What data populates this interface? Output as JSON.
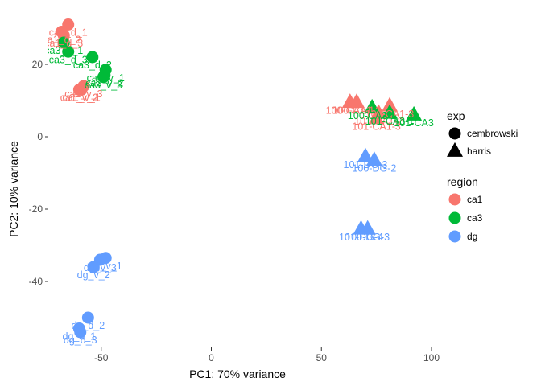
{
  "chart_data": {
    "type": "scatter",
    "title": "",
    "xlabel": "PC1: 70% variance",
    "ylabel": "PC2: 10% variance",
    "xlim": [
      -75,
      102
    ],
    "ylim": [
      -58,
      34
    ],
    "x_ticks": [
      -50,
      0,
      50,
      100
    ],
    "y_ticks": [
      20,
      0,
      -20,
      -40
    ],
    "grid": false,
    "legend": {
      "placement": "right",
      "exp": {
        "title": "exp",
        "entries": [
          {
            "label": "cembrowski",
            "shape": "circle"
          },
          {
            "label": "harris",
            "shape": "triangle"
          }
        ]
      },
      "region": {
        "title": "region",
        "entries": [
          {
            "label": "ca1",
            "color": "#F8766D"
          },
          {
            "label": "ca3",
            "color": "#00BA38"
          },
          {
            "label": "dg",
            "color": "#619CFF"
          }
        ]
      }
    },
    "colors": {
      "ca1": "#F8766D",
      "ca3": "#00BA38",
      "dg": "#619CFF"
    },
    "points": [
      {
        "x": -65,
        "y": 31,
        "region": "ca1",
        "exp": "cembrowski",
        "label": "ca1_d_1"
      },
      {
        "x": -68,
        "y": 29,
        "region": "ca1",
        "exp": "cembrowski",
        "label": "ca1_d_2"
      },
      {
        "x": -67,
        "y": 28,
        "region": "ca1",
        "exp": "cembrowski",
        "label": "ca1_d_3"
      },
      {
        "x": -59,
        "y": 13,
        "region": "ca1",
        "exp": "cembrowski",
        "label": "ca1_v_1"
      },
      {
        "x": -60,
        "y": 13,
        "region": "ca1",
        "exp": "cembrowski",
        "label": "ca1_v_2"
      },
      {
        "x": -58,
        "y": 14,
        "region": "ca1",
        "exp": "cembrowski",
        "label": "ca1_v_3"
      },
      {
        "x": -67,
        "y": 26,
        "region": "ca3",
        "exp": "cembrowski",
        "label": "ca3_d_1"
      },
      {
        "x": -65,
        "y": 23.5,
        "region": "ca3",
        "exp": "cembrowski",
        "label": "ca3_d_3"
      },
      {
        "x": -54,
        "y": 22,
        "region": "ca3",
        "exp": "cembrowski",
        "label": "ca3_d_2"
      },
      {
        "x": -48,
        "y": 18.5,
        "region": "ca3",
        "exp": "cembrowski",
        "label": "ca3_v_1"
      },
      {
        "x": -48.5,
        "y": 17,
        "region": "ca3",
        "exp": "cembrowski",
        "label": "ca3_v_2"
      },
      {
        "x": -49,
        "y": 16.5,
        "region": "ca3",
        "exp": "cembrowski",
        "label": "ca3_v_3"
      },
      {
        "x": 63,
        "y": 9.5,
        "region": "ca1",
        "exp": "harris",
        "label": "100-CA1-1"
      },
      {
        "x": 66,
        "y": 9.5,
        "region": "ca1",
        "exp": "harris",
        "label": "100-CA1-2"
      },
      {
        "x": 76,
        "y": 6.5,
        "region": "ca1",
        "exp": "harris",
        "label": "101-CA1-2"
      },
      {
        "x": 81,
        "y": 8.5,
        "region": "ca1",
        "exp": "harris",
        "label": "100-CA1-3"
      },
      {
        "x": 75,
        "y": 5,
        "region": "ca1",
        "exp": "harris",
        "label": "101-CA1-3"
      },
      {
        "x": 73,
        "y": 8,
        "region": "ca3",
        "exp": "harris",
        "label": "100-CA3-1"
      },
      {
        "x": 81,
        "y": 6.5,
        "region": "ca3",
        "exp": "harris",
        "label": "101-CA3-1"
      },
      {
        "x": 92,
        "y": 6,
        "region": "ca3",
        "exp": "harris",
        "label": "101-CA3"
      },
      {
        "x": 70,
        "y": -5.5,
        "region": "dg",
        "exp": "harris",
        "label": "101-DG-3"
      },
      {
        "x": 74,
        "y": -6.5,
        "region": "dg",
        "exp": "harris",
        "label": "100-DG-2"
      },
      {
        "x": 68,
        "y": -25.5,
        "region": "dg",
        "exp": "harris",
        "label": "101-DG-4"
      },
      {
        "x": 71,
        "y": -25.5,
        "region": "dg",
        "exp": "harris",
        "label": "100-DG-3"
      },
      {
        "x": -48,
        "y": -33.5,
        "region": "dg",
        "exp": "cembrowski",
        "label": "dg_v_1"
      },
      {
        "x": -50.5,
        "y": -34,
        "region": "dg",
        "exp": "cembrowski",
        "label": "dg_v_3"
      },
      {
        "x": -53.5,
        "y": -36,
        "region": "dg",
        "exp": "cembrowski",
        "label": "dg_v_2"
      },
      {
        "x": -56,
        "y": -50,
        "region": "dg",
        "exp": "cembrowski",
        "label": "dg_d_2"
      },
      {
        "x": -60,
        "y": -53,
        "region": "dg",
        "exp": "cembrowski",
        "label": "dg_d_1"
      },
      {
        "x": -59.5,
        "y": -54,
        "region": "dg",
        "exp": "cembrowski",
        "label": "dg_d_3"
      }
    ]
  }
}
